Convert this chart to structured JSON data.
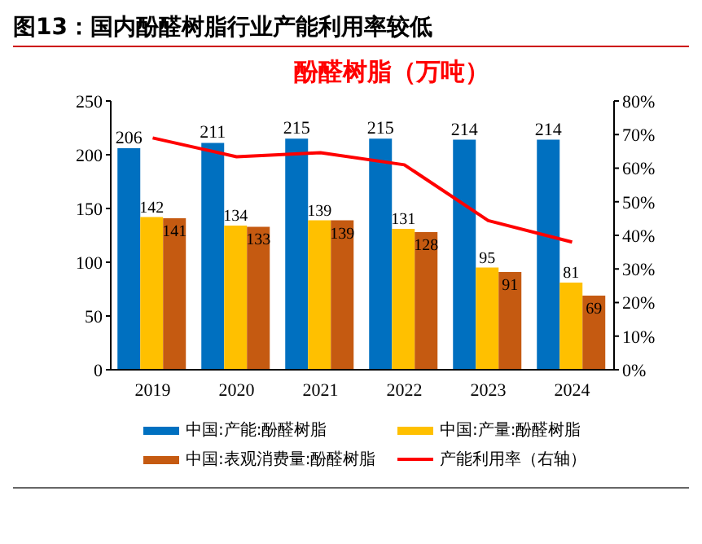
{
  "chart_data": {
    "type": "bar",
    "title": "图13：国内酚醛树脂行业产能利用率较低",
    "subtitle": "酚醛树脂（万吨）",
    "categories": [
      "2019",
      "2020",
      "2021",
      "2022",
      "2023",
      "2024"
    ],
    "series": [
      {
        "name": "中国:产能:酚醛树脂",
        "color": "#0070c0",
        "values": [
          206,
          211,
          215,
          215,
          214,
          214
        ],
        "value_labels": [
          "206",
          "211",
          "215",
          "215",
          "214",
          "214"
        ]
      },
      {
        "name": "中国:产量:酚醛树脂",
        "color": "#ffc000",
        "values": [
          142,
          134,
          139,
          131,
          95,
          81
        ],
        "value_labels": [
          "142",
          "134",
          "139",
          "131",
          "95",
          "81"
        ]
      },
      {
        "name": "中国:表观消费量:酚醛树脂",
        "color": "#c55a11",
        "values": [
          141,
          133,
          139,
          128,
          91,
          69
        ],
        "value_labels": [
          "141",
          "133",
          "139",
          "128",
          "91",
          "69"
        ]
      },
      {
        "name": "产能利用率（右轴）",
        "type": "line",
        "axis": "y2",
        "color": "#ff0000",
        "values": [
          69,
          63.4,
          64.6,
          61,
          44.4,
          38
        ]
      }
    ],
    "ylim": [
      0,
      250
    ],
    "yticks": [
      0,
      50,
      100,
      150,
      200,
      250
    ],
    "y2lim": [
      0,
      80
    ],
    "y2ticks": [
      {
        "value": 0,
        "label": "0%"
      },
      {
        "value": 10,
        "label": "10%"
      },
      {
        "value": 20,
        "label": "20%"
      },
      {
        "value": 30,
        "label": "30%"
      },
      {
        "value": 40,
        "label": "40%"
      },
      {
        "value": 50,
        "label": "50%"
      },
      {
        "value": 60,
        "label": "60%"
      },
      {
        "value": 70,
        "label": "70%"
      },
      {
        "value": 80,
        "label": "80%"
      }
    ],
    "legend": "bottom",
    "marker": "none",
    "line_style": "solid"
  }
}
